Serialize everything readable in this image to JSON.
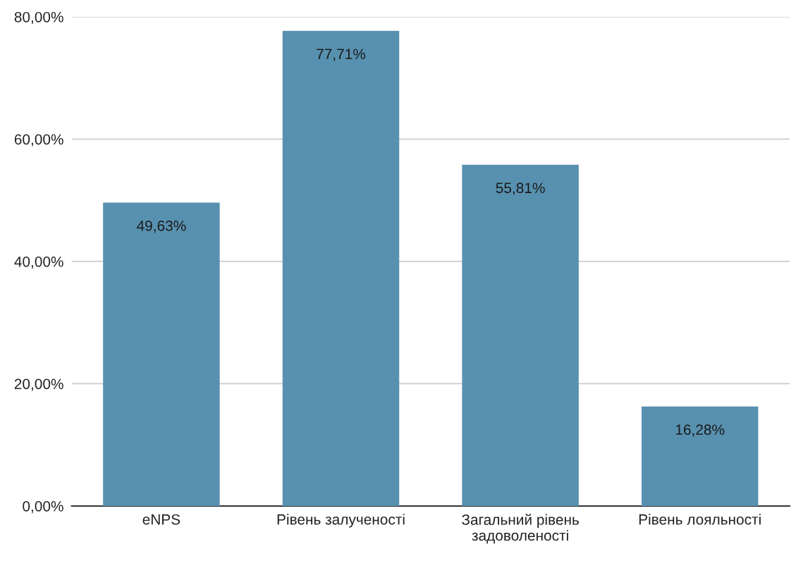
{
  "chart_data": {
    "type": "bar",
    "categories": [
      "eNPS",
      "Рівень залученості",
      "Загальний рівень\nзадоволеності",
      "Рівень лояльності"
    ],
    "values": [
      49.63,
      77.71,
      55.81,
      16.28
    ],
    "value_labels": [
      "49,63%",
      "77,71%",
      "55,81%",
      "16,28%"
    ],
    "color": "#5891b0",
    "ylim": [
      0,
      80
    ],
    "yticks": [
      {
        "value": 0,
        "label": "0,00%"
      },
      {
        "value": 20,
        "label": "20,00%"
      },
      {
        "value": 40,
        "label": "40,00%"
      },
      {
        "value": 60,
        "label": "60,00%"
      },
      {
        "value": 80,
        "label": "80,00%"
      }
    ],
    "grid": "y"
  }
}
